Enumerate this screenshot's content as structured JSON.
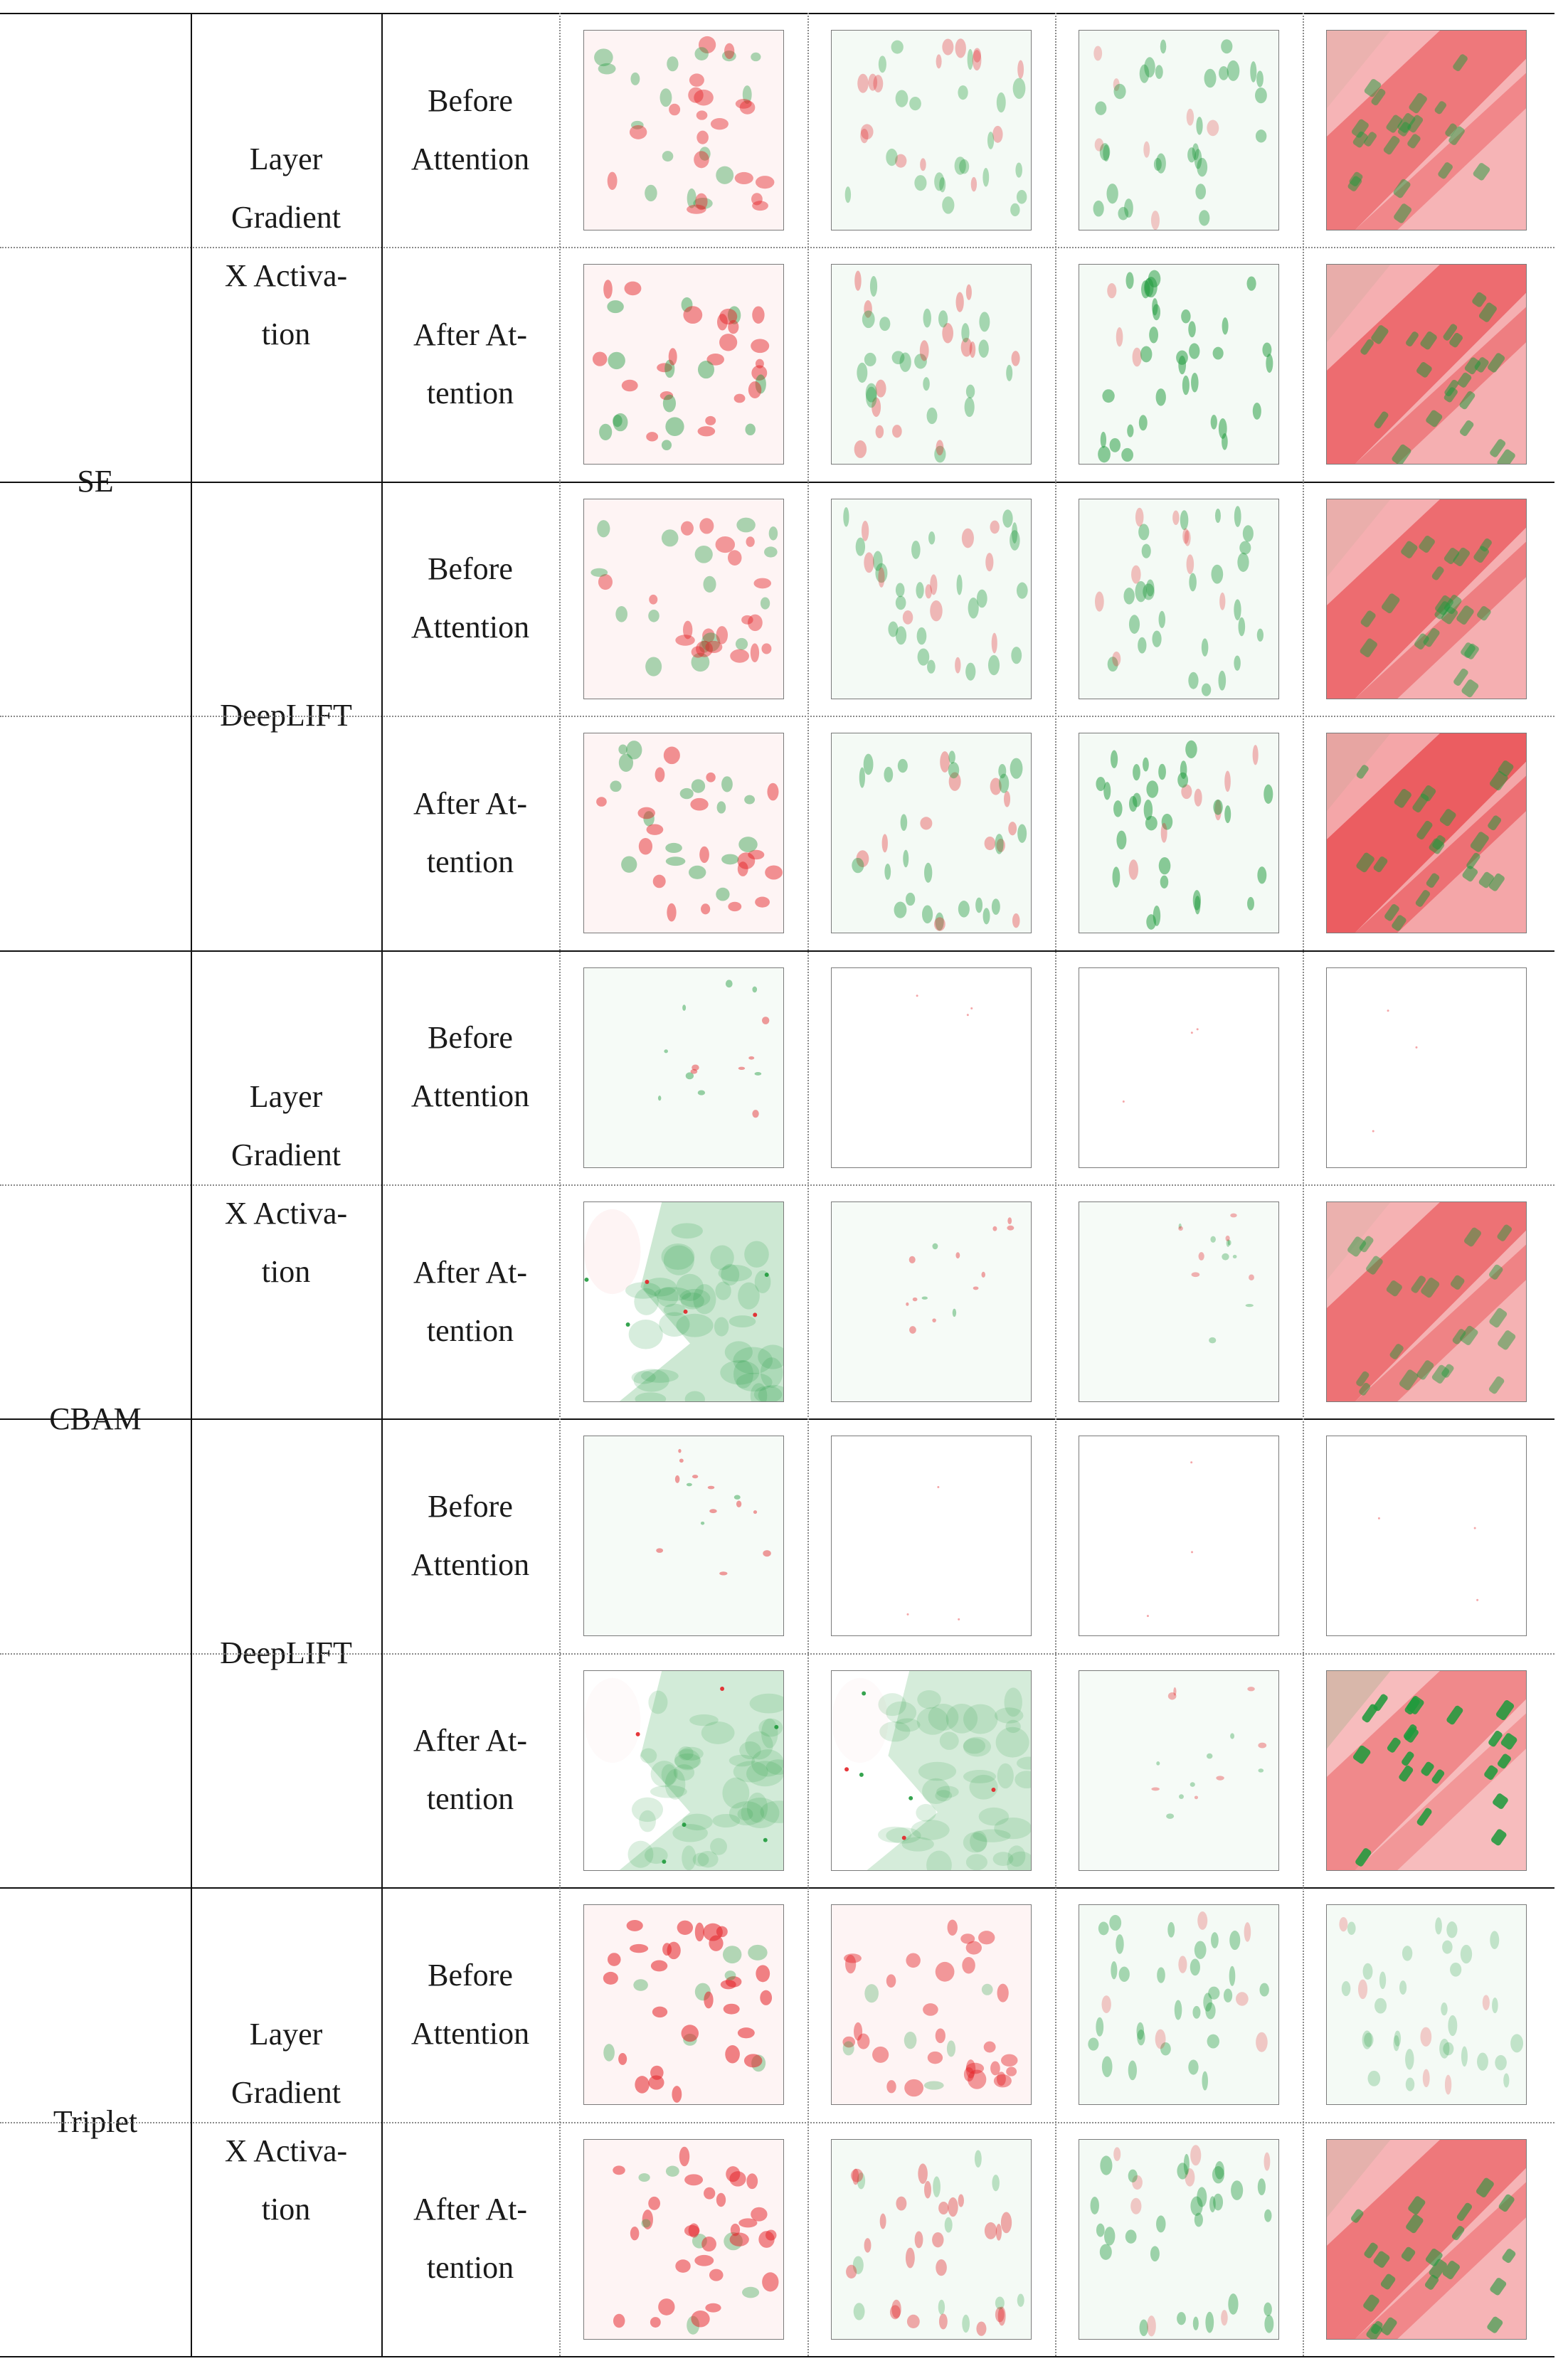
{
  "table": {
    "colors": {
      "positive": "#1f9a3c",
      "negative": "#e32126",
      "rule": "#111111",
      "dotted_rule": "#8a8a8a"
    },
    "blocks": [
      {
        "model": "SE",
        "methods": [
          {
            "name_lines": [
              "Layer",
              "Gradient",
              "X Activa-",
              "tion"
            ],
            "phases": [
              {
                "label_lines": [
                  "Before",
                  "Attention"
                ],
                "tiles": [
                  {
                    "red": 0.35,
                    "green": 0.25,
                    "pattern": "dense"
                  },
                  {
                    "red": 0.15,
                    "green": 0.2,
                    "pattern": "diagonal"
                  },
                  {
                    "red": 0.05,
                    "green": 0.3,
                    "pattern": "diagonal"
                  },
                  {
                    "red": 0.75,
                    "green": 0.35,
                    "pattern": "buildings"
                  }
                ]
              },
              {
                "label_lines": [
                  "After At-",
                  "tention"
                ],
                "tiles": [
                  {
                    "red": 0.4,
                    "green": 0.35,
                    "pattern": "dense"
                  },
                  {
                    "red": 0.2,
                    "green": 0.25,
                    "pattern": "diagonal"
                  },
                  {
                    "red": 0.1,
                    "green": 0.45,
                    "pattern": "diagonal"
                  },
                  {
                    "red": 0.85,
                    "green": 0.4,
                    "pattern": "buildings"
                  }
                ]
              }
            ]
          },
          {
            "name_lines": [
              "DeepLIFT"
            ],
            "phases": [
              {
                "label_lines": [
                  "Before",
                  "Attention"
                ],
                "tiles": [
                  {
                    "red": 0.35,
                    "green": 0.25,
                    "pattern": "dense"
                  },
                  {
                    "red": 0.15,
                    "green": 0.25,
                    "pattern": "diagonal"
                  },
                  {
                    "red": 0.1,
                    "green": 0.3,
                    "pattern": "diagonal"
                  },
                  {
                    "red": 0.85,
                    "green": 0.35,
                    "pattern": "buildings"
                  }
                ]
              },
              {
                "label_lines": [
                  "After At-",
                  "tention"
                ],
                "tiles": [
                  {
                    "red": 0.4,
                    "green": 0.3,
                    "pattern": "dense"
                  },
                  {
                    "red": 0.2,
                    "green": 0.3,
                    "pattern": "diagonal"
                  },
                  {
                    "red": 0.15,
                    "green": 0.45,
                    "pattern": "diagonal"
                  },
                  {
                    "red": 1.0,
                    "green": 0.4,
                    "pattern": "buildings"
                  }
                ]
              }
            ]
          }
        ]
      },
      {
        "model": "CBAM",
        "methods": [
          {
            "name_lines": [
              "Layer",
              "Gradient",
              "X Activa-",
              "tion"
            ],
            "phases": [
              {
                "label_lines": [
                  "Before",
                  "Attention"
                ],
                "tiles": [
                  {
                    "red": 0.2,
                    "green": 0.1,
                    "pattern": "sparse"
                  },
                  {
                    "red": 0.02,
                    "green": 0.01,
                    "pattern": "blank"
                  },
                  {
                    "red": 0.02,
                    "green": 0.01,
                    "pattern": "blank"
                  },
                  {
                    "red": 0.0,
                    "green": 0.0,
                    "pattern": "blank"
                  }
                ]
              },
              {
                "label_lines": [
                  "After At-",
                  "tention"
                ],
                "tiles": [
                  {
                    "red": 0.2,
                    "green": 0.7,
                    "pattern": "blob"
                  },
                  {
                    "red": 0.1,
                    "green": 0.1,
                    "pattern": "sparse"
                  },
                  {
                    "red": 0.05,
                    "green": 0.03,
                    "pattern": "sparse"
                  },
                  {
                    "red": 0.8,
                    "green": 0.3,
                    "pattern": "buildings"
                  }
                ]
              }
            ]
          },
          {
            "name_lines": [
              "DeepLIFT"
            ],
            "phases": [
              {
                "label_lines": [
                  "Before",
                  "Attention"
                ],
                "tiles": [
                  {
                    "red": 0.2,
                    "green": 0.1,
                    "pattern": "sparse"
                  },
                  {
                    "red": 0.02,
                    "green": 0.01,
                    "pattern": "blank"
                  },
                  {
                    "red": 0.02,
                    "green": 0.01,
                    "pattern": "blank"
                  },
                  {
                    "red": 0.0,
                    "green": 0.0,
                    "pattern": "blank"
                  }
                ]
              },
              {
                "label_lines": [
                  "After At-",
                  "tention"
                ],
                "tiles": [
                  {
                    "red": 0.1,
                    "green": 0.6,
                    "pattern": "blob"
                  },
                  {
                    "red": 0.1,
                    "green": 0.55,
                    "pattern": "blob"
                  },
                  {
                    "red": 0.05,
                    "green": 0.05,
                    "pattern": "sparse"
                  },
                  {
                    "red": 0.6,
                    "green": 0.95,
                    "pattern": "buildings"
                  }
                ]
              }
            ]
          }
        ]
      },
      {
        "model": "Triplet",
        "methods": [
          {
            "name_lines": [
              "Layer",
              "Gradient",
              "X Activa-",
              "tion"
            ],
            "phases": [
              {
                "label_lines": [
                  "Before",
                  "Attention"
                ],
                "tiles": [
                  {
                    "red": 0.5,
                    "green": 0.2,
                    "pattern": "dense"
                  },
                  {
                    "red": 0.35,
                    "green": 0.1,
                    "pattern": "dense"
                  },
                  {
                    "red": 0.05,
                    "green": 0.25,
                    "pattern": "diagonal"
                  },
                  {
                    "red": 0.02,
                    "green": 0.05,
                    "pattern": "diagonal"
                  }
                ]
              },
              {
                "label_lines": [
                  "After At-",
                  "tention"
                ],
                "tiles": [
                  {
                    "red": 0.45,
                    "green": 0.2,
                    "pattern": "dense"
                  },
                  {
                    "red": 0.25,
                    "green": 0.1,
                    "pattern": "diagonal"
                  },
                  {
                    "red": 0.05,
                    "green": 0.3,
                    "pattern": "diagonal"
                  },
                  {
                    "red": 0.75,
                    "green": 0.5,
                    "pattern": "buildings"
                  }
                ]
              }
            ]
          }
        ]
      }
    ]
  }
}
